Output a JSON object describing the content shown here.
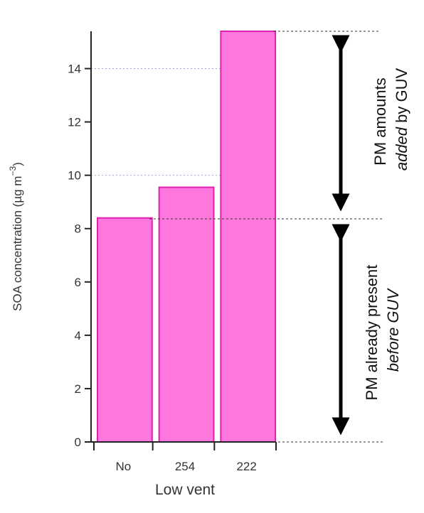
{
  "chart_data": {
    "type": "bar",
    "categories": [
      "No",
      "254",
      "222"
    ],
    "values": [
      8.4,
      9.55,
      15.4
    ],
    "xlabel": "Low vent",
    "ylabel": {
      "main": "SOA concentration (µg m",
      "sup": "−3",
      "close": ")"
    },
    "ylim": [
      0,
      15.4
    ],
    "yticks": [
      "0",
      "2",
      "4",
      "6",
      "8",
      "10",
      "12",
      "14"
    ],
    "grid": "dotted at 10 and 14",
    "bar_color": "#ff77dd",
    "bar_edge_color": "#e020b0",
    "annotations": {
      "upper": {
        "line1": "PM amounts",
        "line2_italic": "added",
        "line2_rest": " by GUV"
      },
      "lower": {
        "line1": "PM already present",
        "line2_italic": "before GUV"
      }
    }
  }
}
